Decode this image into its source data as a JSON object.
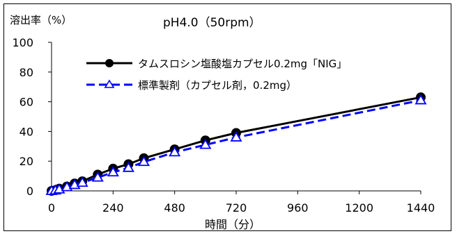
{
  "chart_data": {
    "type": "line",
    "title": "pH4.0（50rpm）",
    "ylabel": "溶出率（%）",
    "xlabel": "時間（分）",
    "xlim": [
      0,
      1440
    ],
    "ylim": [
      0,
      100
    ],
    "xticks": [
      0,
      240,
      480,
      720,
      960,
      1200,
      1440
    ],
    "yticks": [
      0,
      20,
      40,
      60,
      80,
      100
    ],
    "grid": false,
    "legend_position": "top-center",
    "series": [
      {
        "name": "タムスロシン塩酸塩カプセル0.2mg「NIG」",
        "color": "#000000",
        "line_style": "solid",
        "marker": "filled-circle",
        "x": [
          0,
          15,
          30,
          60,
          90,
          120,
          180,
          240,
          300,
          360,
          480,
          600,
          720,
          1440
        ],
        "values": [
          0,
          0.5,
          1.5,
          3,
          5,
          6.5,
          11,
          15,
          18,
          22,
          28,
          34,
          39,
          63
        ]
      },
      {
        "name": "標準製剤（カプセル剤，0.2mg）",
        "color": "#0000ff",
        "line_style": "dashed",
        "marker": "open-triangle",
        "x": [
          0,
          15,
          30,
          60,
          90,
          120,
          180,
          240,
          300,
          360,
          480,
          600,
          720,
          1440
        ],
        "values": [
          0,
          0.3,
          1,
          2.5,
          4,
          5.5,
          9,
          12.5,
          15.5,
          19.5,
          26,
          31,
          36,
          61
        ]
      }
    ]
  }
}
